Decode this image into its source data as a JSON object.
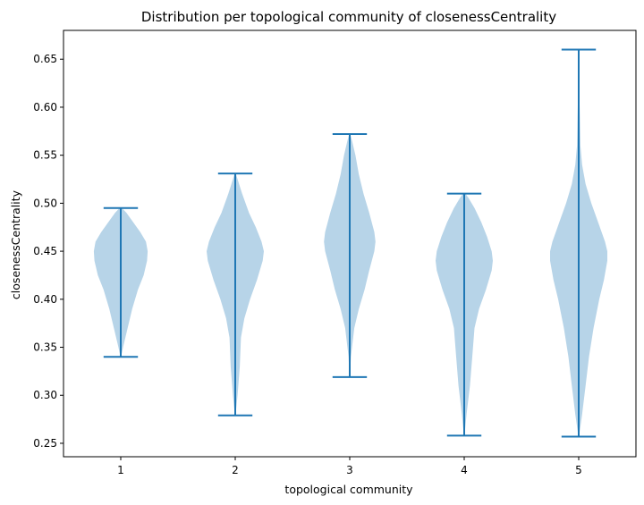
{
  "chart_data": {
    "type": "violin",
    "title": "Distribution per topological community of closenessCentrality",
    "xlabel": "topological community",
    "ylabel": "closenessCentrality",
    "categories": [
      "1",
      "2",
      "3",
      "4",
      "5"
    ],
    "xlim": [
      0.5,
      5.5
    ],
    "ylim": [
      0.236,
      0.68
    ],
    "yticks": [
      "0.25",
      "0.30",
      "0.35",
      "0.40",
      "0.45",
      "0.50",
      "0.55",
      "0.60",
      "0.65"
    ],
    "grid": false,
    "legend": "none",
    "colors": {
      "body": "#b7d4e8",
      "line": "#1f77b4",
      "axis": "#000000"
    },
    "violins": [
      {
        "category": "1",
        "min": 0.34,
        "max": 0.495,
        "profile": [
          [
            0.34,
            0.002
          ],
          [
            0.35,
            0.02
          ],
          [
            0.37,
            0.06
          ],
          [
            0.39,
            0.1
          ],
          [
            0.41,
            0.15
          ],
          [
            0.425,
            0.2
          ],
          [
            0.44,
            0.23
          ],
          [
            0.45,
            0.235
          ],
          [
            0.46,
            0.22
          ],
          [
            0.47,
            0.17
          ],
          [
            0.48,
            0.11
          ],
          [
            0.49,
            0.05
          ],
          [
            0.495,
            0.01
          ]
        ]
      },
      {
        "category": "2",
        "min": 0.279,
        "max": 0.531,
        "profile": [
          [
            0.279,
            0.002
          ],
          [
            0.3,
            0.02
          ],
          [
            0.33,
            0.04
          ],
          [
            0.36,
            0.05
          ],
          [
            0.38,
            0.08
          ],
          [
            0.4,
            0.13
          ],
          [
            0.42,
            0.19
          ],
          [
            0.44,
            0.24
          ],
          [
            0.45,
            0.25
          ],
          [
            0.46,
            0.23
          ],
          [
            0.475,
            0.18
          ],
          [
            0.49,
            0.12
          ],
          [
            0.51,
            0.06
          ],
          [
            0.525,
            0.02
          ],
          [
            0.531,
            0.005
          ]
        ]
      },
      {
        "category": "3",
        "min": 0.319,
        "max": 0.572,
        "profile": [
          [
            0.319,
            0.002
          ],
          [
            0.34,
            0.01
          ],
          [
            0.37,
            0.04
          ],
          [
            0.39,
            0.08
          ],
          [
            0.41,
            0.13
          ],
          [
            0.43,
            0.17
          ],
          [
            0.45,
            0.215
          ],
          [
            0.46,
            0.225
          ],
          [
            0.47,
            0.215
          ],
          [
            0.49,
            0.17
          ],
          [
            0.51,
            0.12
          ],
          [
            0.53,
            0.08
          ],
          [
            0.55,
            0.05
          ],
          [
            0.565,
            0.02
          ],
          [
            0.572,
            0.005
          ]
        ]
      },
      {
        "category": "4",
        "min": 0.258,
        "max": 0.51,
        "profile": [
          [
            0.258,
            0.002
          ],
          [
            0.28,
            0.02
          ],
          [
            0.31,
            0.05
          ],
          [
            0.34,
            0.07
          ],
          [
            0.37,
            0.09
          ],
          [
            0.39,
            0.13
          ],
          [
            0.41,
            0.19
          ],
          [
            0.43,
            0.24
          ],
          [
            0.44,
            0.25
          ],
          [
            0.45,
            0.24
          ],
          [
            0.465,
            0.2
          ],
          [
            0.48,
            0.15
          ],
          [
            0.495,
            0.09
          ],
          [
            0.505,
            0.04
          ],
          [
            0.51,
            0.01
          ]
        ]
      },
      {
        "category": "5",
        "min": 0.257,
        "max": 0.66,
        "profile": [
          [
            0.257,
            0.002
          ],
          [
            0.28,
            0.03
          ],
          [
            0.31,
            0.06
          ],
          [
            0.34,
            0.09
          ],
          [
            0.37,
            0.13
          ],
          [
            0.4,
            0.18
          ],
          [
            0.42,
            0.22
          ],
          [
            0.44,
            0.25
          ],
          [
            0.45,
            0.25
          ],
          [
            0.46,
            0.23
          ],
          [
            0.48,
            0.17
          ],
          [
            0.5,
            0.11
          ],
          [
            0.52,
            0.06
          ],
          [
            0.54,
            0.03
          ],
          [
            0.56,
            0.015
          ],
          [
            0.59,
            0.01
          ],
          [
            0.62,
            0.005
          ],
          [
            0.66,
            0.002
          ]
        ]
      }
    ]
  }
}
